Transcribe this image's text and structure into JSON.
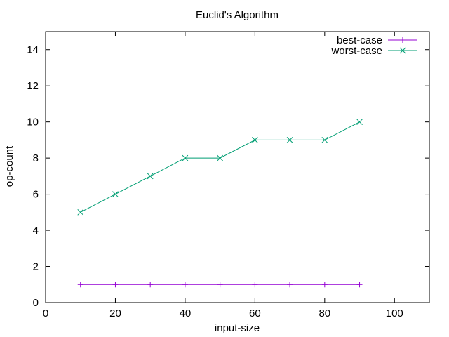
{
  "chart_data": {
    "type": "line",
    "title": "Euclid's Algorithm",
    "xlabel": "input-size",
    "ylabel": "op-count",
    "xlim": [
      0,
      110
    ],
    "ylim": [
      0,
      15
    ],
    "xticks": [
      0,
      20,
      40,
      60,
      80,
      100
    ],
    "yticks": [
      0,
      2,
      4,
      6,
      8,
      10,
      12,
      14
    ],
    "xtick_labels": [
      "0",
      "20",
      "40",
      "60",
      "80",
      "100"
    ],
    "ytick_labels": [
      "0",
      "2",
      "4",
      "6",
      "8",
      "10",
      "12",
      "14"
    ],
    "grid": false,
    "legend_position": "top-right",
    "x": [
      10,
      20,
      30,
      40,
      50,
      60,
      70,
      80,
      90
    ],
    "series": [
      {
        "name": "best-case",
        "values": [
          1,
          1,
          1,
          1,
          1,
          1,
          1,
          1,
          1
        ],
        "color": "#9400d3",
        "marker": "plus"
      },
      {
        "name": "worst-case",
        "values": [
          5,
          6,
          7,
          8,
          8,
          9,
          9,
          9,
          10
        ],
        "color": "#009e73",
        "marker": "cross"
      }
    ]
  }
}
